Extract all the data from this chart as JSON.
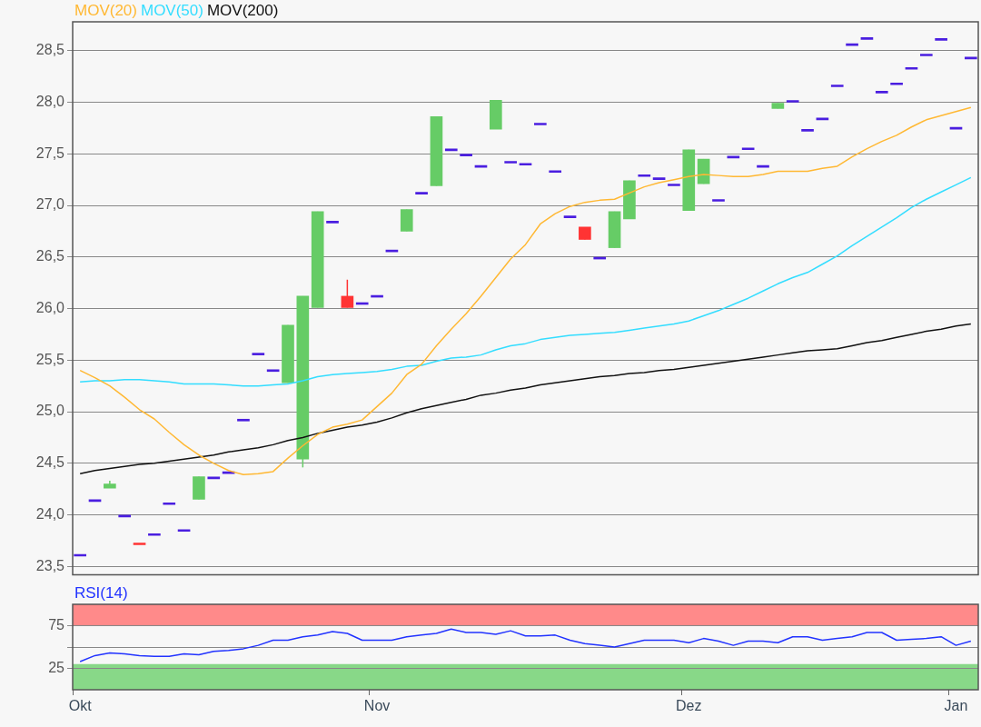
{
  "chart_data": [
    {
      "type": "candlestick",
      "ohlc": [
        [
          23.6,
          23.6,
          23.6,
          23.6
        ],
        [
          24.13,
          24.13,
          24.13,
          24.13
        ],
        [
          24.26,
          24.33,
          24.26,
          24.3
        ],
        [
          23.98,
          23.98,
          23.98,
          23.98
        ],
        [
          23.71,
          23.71,
          23.71,
          23.71
        ],
        [
          23.8,
          23.8,
          23.8,
          23.8
        ],
        [
          24.1,
          24.1,
          24.1,
          24.1
        ],
        [
          23.84,
          23.84,
          23.84,
          23.84
        ],
        [
          24.15,
          24.37,
          24.15,
          24.37
        ],
        [
          24.35,
          24.35,
          24.35,
          24.35
        ],
        [
          24.4,
          24.4,
          24.4,
          24.4
        ],
        [
          24.91,
          24.91,
          24.91,
          24.91
        ],
        [
          25.55,
          25.55,
          25.55,
          25.55
        ],
        [
          25.39,
          25.39,
          25.39,
          25.39
        ],
        [
          25.28,
          25.84,
          25.28,
          25.84
        ],
        [
          24.54,
          26.12,
          24.46,
          26.12
        ],
        [
          26.01,
          26.94,
          26.01,
          26.94
        ],
        [
          26.83,
          26.83,
          26.83,
          26.83
        ],
        [
          26.12,
          26.28,
          26.01,
          26.01
        ],
        [
          26.04,
          26.04,
          26.04,
          26.04
        ],
        [
          26.11,
          26.11,
          26.11,
          26.11
        ],
        [
          26.55,
          26.55,
          26.55,
          26.55
        ],
        [
          26.75,
          26.96,
          26.75,
          26.96
        ],
        [
          27.11,
          27.11,
          27.11,
          27.11
        ],
        [
          27.19,
          27.86,
          27.19,
          27.86
        ],
        [
          27.53,
          27.53,
          27.53,
          27.53
        ],
        [
          27.48,
          27.48,
          27.48,
          27.48
        ],
        [
          27.37,
          27.37,
          27.37,
          27.37
        ],
        [
          27.74,
          28.02,
          27.74,
          28.02
        ],
        [
          27.41,
          27.41,
          27.41,
          27.41
        ],
        [
          27.39,
          27.39,
          27.39,
          27.39
        ],
        [
          27.78,
          27.78,
          27.78,
          27.78
        ],
        [
          27.32,
          27.32,
          27.32,
          27.32
        ],
        [
          26.88,
          26.88,
          26.88,
          26.88
        ],
        [
          26.79,
          26.79,
          26.67,
          26.67
        ],
        [
          26.48,
          26.48,
          26.48,
          26.48
        ],
        [
          26.59,
          26.94,
          26.59,
          26.94
        ],
        [
          26.87,
          27.24,
          26.87,
          27.24
        ],
        [
          27.28,
          27.28,
          27.28,
          27.28
        ],
        [
          27.25,
          27.25,
          27.25,
          27.25
        ],
        [
          27.19,
          27.19,
          27.19,
          27.19
        ],
        [
          26.95,
          27.54,
          26.95,
          27.54
        ],
        [
          27.21,
          27.45,
          27.21,
          27.45
        ],
        [
          27.04,
          27.04,
          27.04,
          27.04
        ],
        [
          27.46,
          27.46,
          27.46,
          27.46
        ],
        [
          27.54,
          27.54,
          27.54,
          27.54
        ],
        [
          27.37,
          27.37,
          27.37,
          27.37
        ],
        [
          27.94,
          27.99,
          27.94,
          27.99
        ],
        [
          28.0,
          28.0,
          28.0,
          28.0
        ],
        [
          27.72,
          27.72,
          27.72,
          27.72
        ],
        [
          27.83,
          27.83,
          27.83,
          27.83
        ],
        [
          28.15,
          28.15,
          28.15,
          28.15
        ],
        [
          28.55,
          28.55,
          28.55,
          28.55
        ],
        [
          28.61,
          28.61,
          28.61,
          28.61
        ],
        [
          28.09,
          28.09,
          28.09,
          28.09
        ],
        [
          28.17,
          28.17,
          28.17,
          28.17
        ],
        [
          28.32,
          28.32,
          28.32,
          28.32
        ],
        [
          28.45,
          28.45,
          28.45,
          28.45
        ],
        [
          28.6,
          28.6,
          28.6,
          28.6
        ],
        [
          27.74,
          27.74,
          27.74,
          27.74
        ],
        [
          28.42,
          28.42,
          28.42,
          28.42
        ]
      ],
      "colors": [
        "#4a1ee0",
        "#4a1ee0",
        "#66cc66",
        "#4a1ee0",
        "#ff3333",
        "#4a1ee0",
        "#4a1ee0",
        "#4a1ee0",
        "#66cc66",
        "#4a1ee0",
        "#4a1ee0",
        "#4a1ee0",
        "#4a1ee0",
        "#4a1ee0",
        "#66cc66",
        "#66cc66",
        "#66cc66",
        "#4a1ee0",
        "#ff3333",
        "#4a1ee0",
        "#4a1ee0",
        "#4a1ee0",
        "#66cc66",
        "#4a1ee0",
        "#66cc66",
        "#4a1ee0",
        "#4a1ee0",
        "#4a1ee0",
        "#66cc66",
        "#4a1ee0",
        "#4a1ee0",
        "#4a1ee0",
        "#4a1ee0",
        "#4a1ee0",
        "#ff3333",
        "#4a1ee0",
        "#66cc66",
        "#66cc66",
        "#4a1ee0",
        "#4a1ee0",
        "#4a1ee0",
        "#66cc66",
        "#66cc66",
        "#4a1ee0",
        "#4a1ee0",
        "#4a1ee0",
        "#4a1ee0",
        "#66cc66",
        "#4a1ee0",
        "#4a1ee0",
        "#4a1ee0",
        "#4a1ee0",
        "#4a1ee0",
        "#4a1ee0",
        "#4a1ee0",
        "#4a1ee0",
        "#4a1ee0",
        "#4a1ee0",
        "#4a1ee0",
        "#4a1ee0",
        "#4a1ee0"
      ],
      "series": [
        {
          "type": "line",
          "name": "MOV(20)",
          "color": "#ffb833",
          "values": [
            25.4,
            25.33,
            25.25,
            25.14,
            25.02,
            24.93,
            24.8,
            24.68,
            24.58,
            24.5,
            24.43,
            24.39,
            24.4,
            24.42,
            24.55,
            24.67,
            24.78,
            24.85,
            24.88,
            24.92,
            25.05,
            25.18,
            25.36,
            25.46,
            25.64,
            25.8,
            25.95,
            26.12,
            26.3,
            26.48,
            26.62,
            26.82,
            26.92,
            26.99,
            27.03,
            27.05,
            27.06,
            27.12,
            27.18,
            27.22,
            27.25,
            27.28,
            27.3,
            27.29,
            27.28,
            27.28,
            27.3,
            27.33,
            27.33,
            27.33,
            27.36,
            27.38,
            27.47,
            27.55,
            27.62,
            27.68,
            27.76,
            27.83,
            27.87,
            27.91,
            27.95
          ]
        },
        {
          "type": "line",
          "name": "MOV(50)",
          "color": "#33ddff",
          "values": [
            25.29,
            25.3,
            25.3,
            25.31,
            25.31,
            25.3,
            25.29,
            25.27,
            25.27,
            25.27,
            25.26,
            25.25,
            25.25,
            25.26,
            25.27,
            25.3,
            25.34,
            25.36,
            25.37,
            25.38,
            25.39,
            25.41,
            25.44,
            25.45,
            25.49,
            25.52,
            25.53,
            25.55,
            25.6,
            25.64,
            25.66,
            25.7,
            25.72,
            25.74,
            25.75,
            25.76,
            25.77,
            25.79,
            25.81,
            25.83,
            25.85,
            25.88,
            25.93,
            25.98,
            26.04,
            26.1,
            26.17,
            26.24,
            26.3,
            26.35,
            26.43,
            26.51,
            26.61,
            26.7,
            26.79,
            26.88,
            26.98,
            27.06,
            27.13,
            27.2,
            27.27
          ]
        },
        {
          "type": "line",
          "name": "MOV(200)",
          "color": "#111111",
          "values": [
            24.4,
            24.43,
            24.45,
            24.47,
            24.49,
            24.5,
            24.52,
            24.54,
            24.56,
            24.58,
            24.61,
            24.63,
            24.65,
            24.68,
            24.72,
            24.75,
            24.79,
            24.82,
            24.85,
            24.87,
            24.9,
            24.94,
            24.99,
            25.03,
            25.06,
            25.09,
            25.12,
            25.16,
            25.18,
            25.21,
            25.23,
            25.26,
            25.28,
            25.3,
            25.32,
            25.34,
            25.35,
            25.37,
            25.38,
            25.4,
            25.41,
            25.43,
            25.45,
            25.47,
            25.49,
            25.51,
            25.53,
            25.55,
            25.57,
            25.59,
            25.6,
            25.61,
            25.64,
            25.67,
            25.69,
            25.72,
            25.75,
            25.78,
            25.8,
            25.83,
            25.85
          ]
        }
      ],
      "ylim": [
        23.42,
        28.78
      ],
      "yticks": [
        {
          "value": 23.5,
          "label": "23,5"
        },
        {
          "value": 24,
          "label": "24,0"
        },
        {
          "value": 24.5,
          "label": "24,5"
        },
        {
          "value": 25,
          "label": "25,0"
        },
        {
          "value": 25.5,
          "label": "25,5"
        },
        {
          "value": 26,
          "label": "26,0"
        },
        {
          "value": 26.5,
          "label": "26,5"
        },
        {
          "value": 27,
          "label": "27,0"
        },
        {
          "value": 27.5,
          "label": "27,5"
        },
        {
          "value": 28,
          "label": "28,0"
        },
        {
          "value": 28.5,
          "label": "28,5"
        }
      ],
      "grid": true,
      "legend": "top left",
      "tick_labels": "y"
    },
    {
      "type": "line",
      "categories": [
        "Okt",
        null,
        null,
        null,
        null,
        null,
        null,
        null,
        null,
        null,
        null,
        null,
        null,
        null,
        null,
        null,
        null,
        null,
        null,
        null,
        "Nov",
        null,
        null,
        null,
        null,
        null,
        null,
        null,
        null,
        null,
        null,
        null,
        null,
        null,
        null,
        null,
        null,
        null,
        null,
        null,
        null,
        "Dez",
        null,
        null,
        null,
        null,
        null,
        null,
        null,
        null,
        null,
        null,
        null,
        null,
        null,
        null,
        null,
        null,
        null,
        "Jan",
        null
      ],
      "series": [
        {
          "name": "RSI(14)",
          "color": "#2233ff",
          "values": [
            33,
            40,
            43,
            42,
            40,
            39,
            39,
            42,
            41,
            45,
            46,
            48,
            52,
            58,
            58,
            62,
            64,
            68,
            66,
            58,
            58,
            58,
            62,
            64,
            66,
            71,
            67,
            67,
            65,
            69,
            63,
            63,
            64,
            58,
            54,
            52,
            50,
            54,
            58,
            58,
            58,
            55,
            60,
            57,
            52,
            57,
            57,
            55,
            62,
            62,
            58,
            60,
            62,
            67,
            67,
            58,
            59,
            60,
            62,
            52,
            57
          ]
        }
      ],
      "ylim": [
        0,
        100
      ],
      "yticks": [
        {
          "value": 25,
          "label": "25"
        },
        {
          "value": 50,
          "label": null
        },
        {
          "value": 75,
          "label": "75"
        }
      ],
      "bands": [
        {
          "axis": "y",
          "from": 75,
          "to": 100,
          "color": "#ff8a8a"
        },
        {
          "axis": "y",
          "from": 0,
          "to": 30,
          "color": "#88d888"
        }
      ],
      "grid": true,
      "legend": "top left"
    }
  ]
}
